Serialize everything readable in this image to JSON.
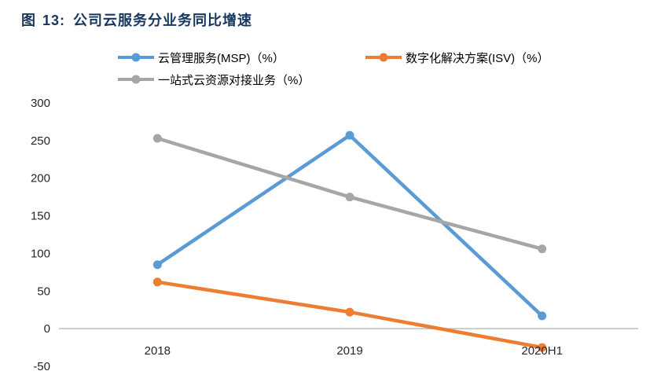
{
  "figure": {
    "label": "图",
    "number": "13:",
    "title": "公司云服务分业务同比增速"
  },
  "colors": {
    "title": "#17375E",
    "axis_line": "#BFBFBF",
    "tick_text": "#262626"
  },
  "chart_data": {
    "type": "line",
    "title": "公司云服务分业务同比增速",
    "categories": [
      "2018",
      "2019",
      "2020H1"
    ],
    "series": [
      {
        "name": "云管理服务(MSP)（%）",
        "color": "#5B9BD5",
        "values": [
          85,
          257,
          17
        ]
      },
      {
        "name": "数字化解决方案(ISV)（%）",
        "color": "#ED7D31",
        "values": [
          62,
          22,
          -25
        ]
      },
      {
        "name": "一站式云资源对接业务（%）",
        "color": "#A6A6A6",
        "values": [
          253,
          175,
          106
        ]
      }
    ],
    "xlabel": "",
    "ylabel": "",
    "ylim": [
      -50,
      300
    ],
    "ytick_step": 50,
    "grid": false,
    "legend_position": "top"
  }
}
